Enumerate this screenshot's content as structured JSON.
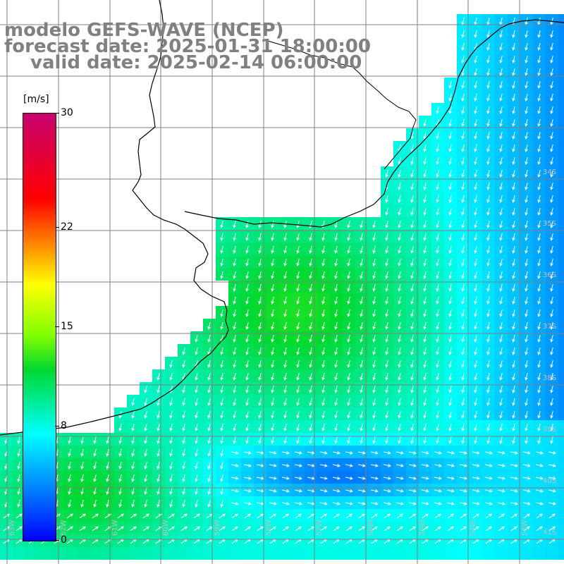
{
  "title": {
    "line1": "modelo GEFS-WAVE (NCEP)",
    "line2": "forecast date: 2025-01-31 18:00:00",
    "line3": "valid date: 2025-02-14 06:00:00"
  },
  "colorbar": {
    "unit": "[m/s]",
    "ticks": [
      {
        "label": "30",
        "value": 30
      },
      {
        "label": "22",
        "value": 22
      },
      {
        "label": "15",
        "value": 15
      },
      {
        "label": "8",
        "value": 8
      },
      {
        "label": "0",
        "value": 0
      }
    ],
    "min": 0,
    "max": 30
  },
  "lat_labels": [
    "34S",
    "35S",
    "36S",
    "37S",
    "38S",
    "39S",
    "40S",
    "41S"
  ],
  "lon_labels": [
    "63W",
    "62W",
    "61W",
    "60W",
    "59W",
    "58W",
    "57W",
    "56W",
    "55W",
    "54W",
    "53W",
    "52W",
    "51W"
  ],
  "colors": {
    "land": "#ffffff",
    "coast": "#000000",
    "grid": "#808080",
    "vectors": "#ffffff",
    "title": "#808080"
  }
}
